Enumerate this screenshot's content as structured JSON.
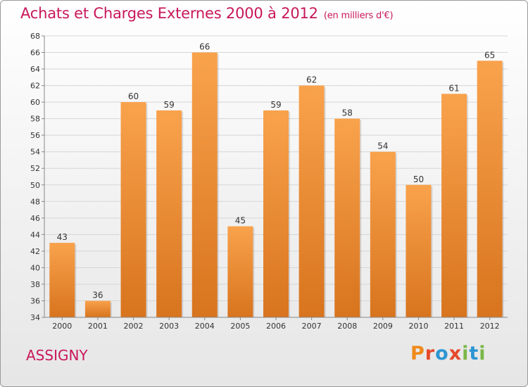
{
  "header": {
    "title": "Achats et Charges Externes 2000 à 2012",
    "subtitle": "(en milliers d'€)"
  },
  "footer": {
    "commune": "ASSIGNY",
    "brand": "Proxiti"
  },
  "colors": {
    "title": "#c8175a",
    "bar_light": "#f9a24c",
    "bar_dark": "#d8741e",
    "logo_letters": [
      "#f08a1c",
      "#e4492a",
      "#2d95d3",
      "#e4492a",
      "#7ab648",
      "#2d95d3",
      "#7ab648"
    ]
  },
  "chart_data": {
    "type": "bar",
    "categories": [
      "2000",
      "2001",
      "2002",
      "2003",
      "2004",
      "2005",
      "2006",
      "2007",
      "2008",
      "2009",
      "2010",
      "2011",
      "2012"
    ],
    "values": [
      43,
      36,
      60,
      59,
      66,
      45,
      59,
      62,
      58,
      54,
      50,
      61,
      65
    ],
    "ylim": [
      34,
      68
    ],
    "yticks": [
      34,
      36,
      38,
      40,
      42,
      44,
      46,
      48,
      50,
      52,
      54,
      56,
      58,
      60,
      62,
      64,
      66,
      68
    ],
    "grid": true,
    "data_labels": true,
    "legend": "none"
  }
}
